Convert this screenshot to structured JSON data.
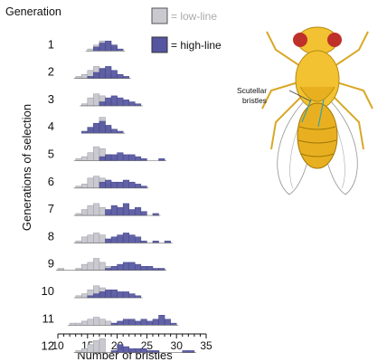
{
  "chart_data": {
    "type": "histogram",
    "gen_header": "Generation",
    "ylabel": "Generations of selection",
    "xlabel": "Number of bristles",
    "xlim": [
      10,
      35
    ],
    "xticks": [
      10,
      15,
      20,
      25,
      30,
      35
    ],
    "legend": [
      {
        "label": "= low-line",
        "color": "#c9c9cf"
      },
      {
        "label": "= high-line",
        "color": "#5555a0"
      }
    ],
    "generations": [
      {
        "label": "1",
        "low": {
          "start": 15,
          "counts": [
            1,
            3,
            5,
            4,
            2
          ]
        },
        "high": {
          "start": 16,
          "counts": [
            2,
            4,
            5,
            3,
            1
          ]
        }
      },
      {
        "label": "2",
        "low": {
          "start": 13,
          "counts": [
            1,
            2,
            4,
            6,
            5,
            2,
            1
          ]
        },
        "high": {
          "start": 15,
          "counts": [
            1,
            3,
            5,
            6,
            4,
            2,
            1
          ]
        }
      },
      {
        "label": "3",
        "low": {
          "start": 14,
          "counts": [
            1,
            4,
            6,
            5,
            2,
            1
          ]
        },
        "high": {
          "start": 17,
          "counts": [
            2,
            4,
            5,
            4,
            3,
            2,
            1
          ]
        }
      },
      {
        "label": "4",
        "low": {
          "start": 15,
          "counts": [
            2,
            5,
            8,
            3
          ]
        },
        "high": {
          "start": 14,
          "counts": [
            1,
            3,
            5,
            6,
            4,
            2,
            1
          ]
        }
      },
      {
        "label": "5",
        "low": {
          "start": 13,
          "counts": [
            1,
            2,
            4,
            7,
            6,
            3,
            1
          ]
        },
        "high": {
          "start": 17,
          "counts": [
            2,
            3,
            3,
            4,
            3,
            3,
            2,
            1,
            0,
            0,
            1
          ]
        }
      },
      {
        "label": "6",
        "low": {
          "start": 13,
          "counts": [
            1,
            2,
            5,
            6,
            5,
            2
          ]
        },
        "high": {
          "start": 17,
          "counts": [
            3,
            4,
            3,
            3,
            4,
            3,
            2,
            1
          ]
        }
      },
      {
        "label": "7",
        "low": {
          "start": 13,
          "counts": [
            1,
            3,
            5,
            6,
            4,
            1
          ]
        },
        "high": {
          "start": 18,
          "counts": [
            3,
            5,
            4,
            6,
            3,
            4,
            2,
            0,
            1
          ]
        }
      },
      {
        "label": "8",
        "low": {
          "start": 13,
          "counts": [
            1,
            3,
            4,
            5,
            4,
            2
          ]
        },
        "high": {
          "start": 18,
          "counts": [
            2,
            3,
            4,
            5,
            4,
            3,
            1,
            0,
            1,
            0,
            1
          ]
        }
      },
      {
        "label": "9",
        "low": {
          "start": 10,
          "counts": [
            1,
            0,
            0,
            1,
            3,
            4,
            6,
            4,
            2
          ]
        },
        "high": {
          "start": 18,
          "counts": [
            1,
            2,
            3,
            4,
            4,
            3,
            2,
            2,
            1,
            1
          ]
        }
      },
      {
        "label": "10",
        "low": {
          "start": 13,
          "counts": [
            1,
            2,
            4,
            6,
            5,
            3,
            1
          ]
        },
        "high": {
          "start": 15,
          "counts": [
            1,
            2,
            3,
            4,
            4,
            3,
            3,
            2,
            1
          ]
        }
      },
      {
        "label": "11",
        "low": {
          "start": 12,
          "counts": [
            1,
            1,
            2,
            3,
            4,
            3,
            2,
            1
          ]
        },
        "high": {
          "start": 19,
          "counts": [
            1,
            2,
            3,
            3,
            2,
            3,
            2,
            3,
            5,
            3,
            1
          ]
        }
      },
      {
        "label": "12",
        "low": {
          "start": 13,
          "counts": [
            1,
            2,
            4,
            6,
            7
          ]
        },
        "high": {
          "start": 19,
          "counts": [
            1,
            4,
            3,
            2,
            2,
            2,
            1,
            1,
            0,
            0,
            0,
            0,
            1,
            1
          ]
        }
      }
    ]
  },
  "illustration": {
    "label_line1": "Scutellar",
    "label_line2": "bristles",
    "icon": "fruit-fly-icon"
  }
}
